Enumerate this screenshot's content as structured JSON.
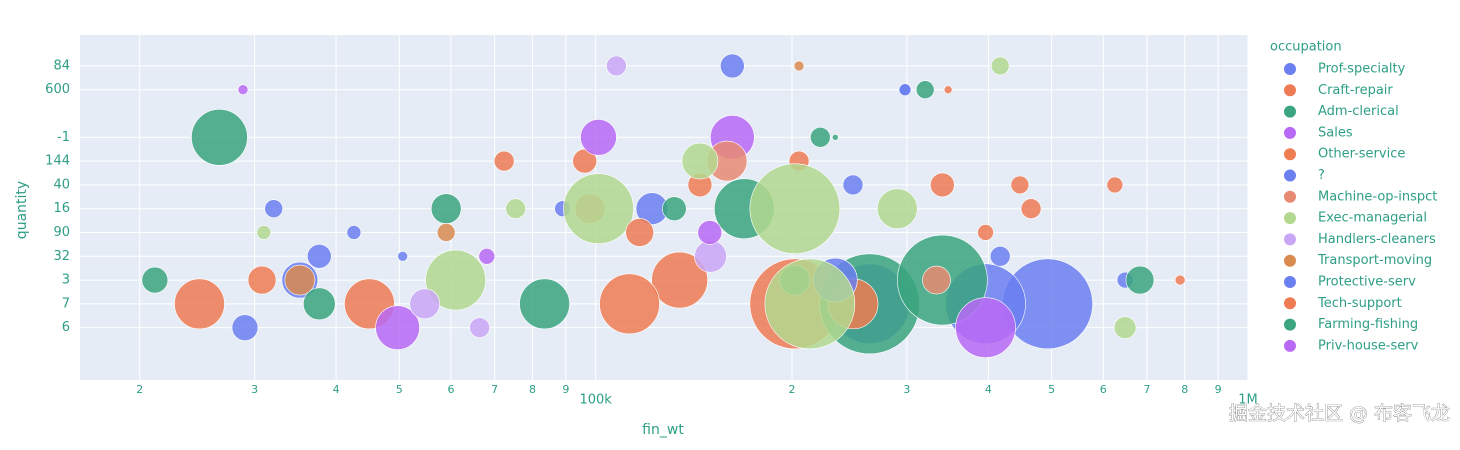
{
  "chart_data": {
    "type": "scatter",
    "x_title": "fin_wt",
    "y_title": "quantity",
    "legend_title": "occupation",
    "log_x": true,
    "grid": true,
    "legend": "right",
    "xlim": [
      16200,
      1000000
    ],
    "xticks": [
      {
        "value": 20000,
        "label": "2"
      },
      {
        "value": 30000,
        "label": "3"
      },
      {
        "value": 40000,
        "label": "4"
      },
      {
        "value": 50000,
        "label": "5"
      },
      {
        "value": 60000,
        "label": "6"
      },
      {
        "value": 70000,
        "label": "7"
      },
      {
        "value": 80000,
        "label": "8"
      },
      {
        "value": 90000,
        "label": "9"
      },
      {
        "value": 100000,
        "label": "100k"
      },
      {
        "value": 200000,
        "label": "2"
      },
      {
        "value": 300000,
        "label": "3"
      },
      {
        "value": 400000,
        "label": "4"
      },
      {
        "value": 500000,
        "label": "5"
      },
      {
        "value": 600000,
        "label": "6"
      },
      {
        "value": 700000,
        "label": "7"
      },
      {
        "value": 800000,
        "label": "8"
      },
      {
        "value": 900000,
        "label": "9"
      },
      {
        "value": 1000000,
        "label": "1M"
      }
    ],
    "y_categories": [
      "6",
      "7",
      "3",
      "32",
      "90",
      "16",
      "40",
      "144",
      "-1",
      null,
      "600",
      "84"
    ],
    "ylim": [
      -2.2,
      12.3
    ],
    "watermark": "掘金技术社区 @ 布客飞龙",
    "series": [
      {
        "name": "Prof-specialty",
        "color": "#6b7ff0",
        "x": [
          493000,
          122000,
          396000,
          29000,
          32100,
          35200,
          248000,
          162000,
          298000,
          648000,
          263000,
          37700
        ],
        "y": [
          "7",
          "16",
          "7",
          "6",
          "16",
          "3",
          "40",
          "84",
          "600",
          "3",
          "7",
          "32"
        ],
        "sizes": [
          2025,
          256,
          1600,
          169,
          81,
          324,
          100,
          144,
          36,
          64,
          1600,
          144
        ]
      },
      {
        "name": "Craft-repair",
        "color": "#ef7b55",
        "x": [
          24700,
          45000,
          202000,
          134500,
          340000,
          625000,
          72400,
          205000,
          787000,
          96200,
          447000
        ],
        "y": [
          "7",
          "7",
          "7",
          "3",
          "40",
          "40",
          "144",
          "144",
          "3",
          "144",
          "40"
        ],
        "sizes": [
          625,
          625,
          2025,
          784,
          144,
          64,
          100,
          100,
          25,
          144,
          81
        ]
      },
      {
        "name": "Adm-clerical",
        "color": "#3aa57e",
        "x": [
          26500,
          683000,
          320000,
          59000,
          169000,
          263000,
          340000,
          21100,
          37700,
          202000,
          83500
        ],
        "y": [
          "-1",
          "3",
          "600",
          "16",
          "16",
          "7",
          "3",
          "3",
          "7",
          "3",
          "7"
        ],
        "sizes": [
          784,
          196,
          81,
          225,
          900,
          2500,
          2025,
          169,
          256,
          225,
          625
        ]
      },
      {
        "name": "Sales",
        "color": "#b86af5",
        "x": [
          101000,
          162000,
          49700,
          28800,
          68100,
          396000
        ],
        "y": [
          "-1",
          "-1",
          "6",
          "600",
          "32",
          "6"
        ],
        "sizes": [
          324,
          484,
          484,
          25,
          64,
          900
        ]
      },
      {
        "name": "Other-service",
        "color": "#ee7d52",
        "x": [
          112700,
          248000,
          30800,
          144500
        ],
        "y": [
          "7",
          "7",
          "3",
          "40"
        ],
        "sizes": [
          900,
          625,
          196,
          144
        ]
      },
      {
        "name": "?",
        "color": "#6b7ff0",
        "x": [
          89000,
          50600,
          233000
        ],
        "y": [
          "16",
          "32",
          "3"
        ],
        "sizes": [
          64,
          25,
          484
        ]
      },
      {
        "name": "Machine-op-inspct",
        "color": "#e88a72",
        "x": [
          98000,
          159000,
          333000
        ],
        "y": [
          "16",
          "144",
          "3"
        ],
        "sizes": [
          225,
          400,
          196
        ]
      },
      {
        "name": "Exec-managerial",
        "color": "#b3d88f",
        "x": [
          101000,
          202000,
          61000,
          417000,
          75400,
          31000,
          648000,
          290000,
          144500,
          213000
        ],
        "y": [
          "16",
          "16",
          "3",
          "84",
          "16",
          "90",
          "6",
          "16",
          "144",
          "7"
        ],
        "sizes": [
          1225,
          2025,
          900,
          81,
          100,
          49,
          121,
          400,
          324,
          2025
        ]
      },
      {
        "name": "Handlers-cleaners",
        "color": "#c9a6f5",
        "x": [
          107600,
          54700,
          66400,
          150000
        ],
        "y": [
          "84",
          "7",
          "6",
          "32"
        ],
        "sizes": [
          100,
          225,
          100,
          256
        ]
      },
      {
        "name": "Transport-moving",
        "color": "#d98a4f",
        "x": [
          35200,
          59000,
          205000
        ],
        "y": [
          "3",
          "90",
          "84"
        ],
        "sizes": [
          225,
          81,
          25
        ]
      },
      {
        "name": "Protective-serv",
        "color": "#6b7ff0",
        "x": [
          42600,
          298000,
          417000
        ],
        "y": [
          "90",
          "600",
          "32"
        ],
        "sizes": [
          49,
          36,
          100
        ]
      },
      {
        "name": "Tech-support",
        "color": "#ef7b55",
        "x": [
          465000,
          116800,
          396000,
          347000
        ],
        "y": [
          "16",
          "90",
          "90",
          "600"
        ],
        "sizes": [
          100,
          196,
          64,
          16
        ]
      },
      {
        "name": "Farming-fishing",
        "color": "#3aa57e",
        "x": [
          221000,
          233000,
          132000
        ],
        "y": [
          "-1",
          "-1",
          "16"
        ],
        "sizes": [
          100,
          9,
          144
        ]
      },
      {
        "name": "Priv-house-serv",
        "color": "#b86af5",
        "x": [
          149600
        ],
        "y": [
          "90"
        ],
        "sizes": [
          144
        ]
      }
    ]
  }
}
